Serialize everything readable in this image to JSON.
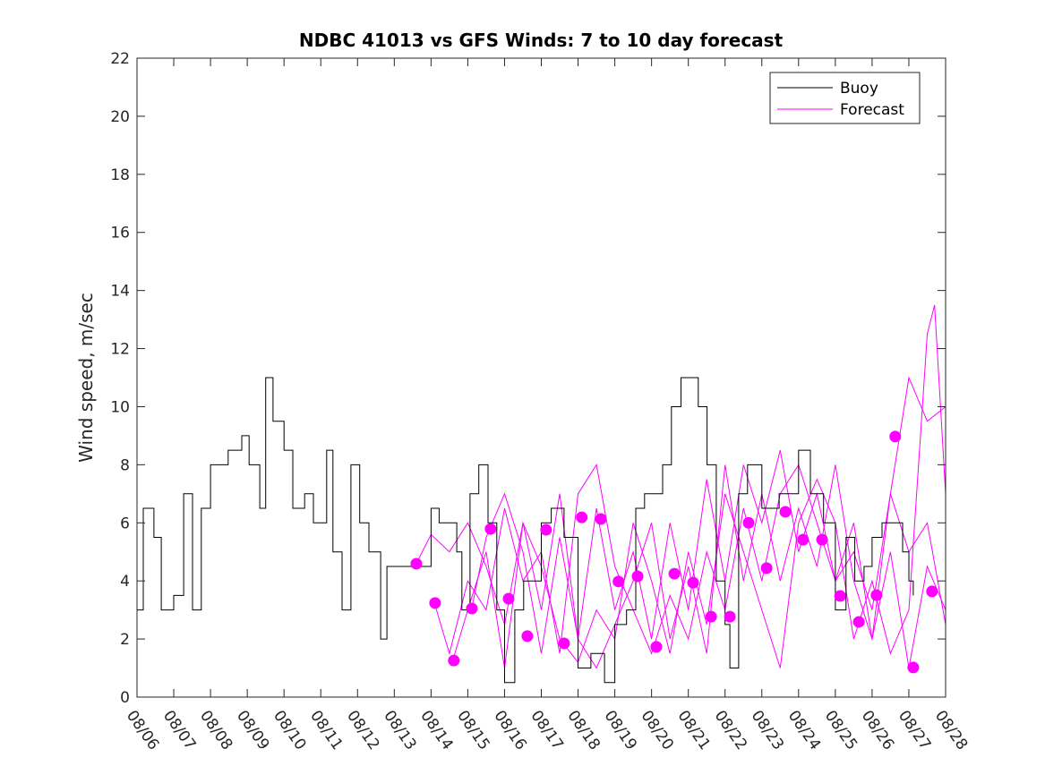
{
  "chart_data": {
    "type": "line",
    "title": "NDBC 41013 vs GFS Winds: 7 to 10 day forecast",
    "xlabel": "",
    "ylabel": "Wind speed, m/sec",
    "xlim": [
      0,
      22
    ],
    "ylim": [
      0,
      22
    ],
    "x_units": "days since 08/06",
    "x_tick_labels": [
      "08/06",
      "08/07",
      "08/08",
      "08/09",
      "08/10",
      "08/11",
      "08/12",
      "08/13",
      "08/14",
      "08/15",
      "08/16",
      "08/17",
      "08/18",
      "08/19",
      "08/20",
      "08/21",
      "08/22",
      "08/23",
      "08/24",
      "08/25",
      "08/26",
      "08/27",
      "08/28"
    ],
    "y_ticks": [
      0,
      2,
      4,
      6,
      8,
      10,
      12,
      14,
      16,
      18,
      20,
      22
    ],
    "legend": {
      "placement": "top-right",
      "entries": [
        "Buoy",
        "Forecast"
      ]
    },
    "colors": {
      "buoy": "#000000",
      "forecast": "#ff00ff"
    },
    "buoy": [
      [
        0,
        3
      ],
      [
        0.17,
        6.5
      ],
      [
        0.46,
        5.5
      ],
      [
        0.66,
        3
      ],
      [
        1,
        3.5
      ],
      [
        1.27,
        7
      ],
      [
        1.51,
        3
      ],
      [
        1.75,
        6.5
      ],
      [
        2,
        8
      ],
      [
        2.48,
        8.5
      ],
      [
        2.85,
        9
      ],
      [
        3.05,
        8
      ],
      [
        3.34,
        6.5
      ],
      [
        3.5,
        11
      ],
      [
        3.7,
        9.5
      ],
      [
        4,
        8.5
      ],
      [
        4.24,
        6.5
      ],
      [
        4.56,
        7
      ],
      [
        4.8,
        6
      ],
      [
        5.16,
        8.5
      ],
      [
        5.33,
        5
      ],
      [
        5.58,
        3
      ],
      [
        5.82,
        8
      ],
      [
        6.06,
        6
      ],
      [
        6.31,
        5
      ],
      [
        6.63,
        2
      ],
      [
        6.8,
        4.5
      ],
      [
        7,
        4.5
      ],
      [
        7.48,
        4.5
      ],
      [
        7.72,
        4.5
      ],
      [
        8,
        6.5
      ],
      [
        8.22,
        6
      ],
      [
        8.45,
        6
      ],
      [
        8.7,
        5
      ],
      [
        8.84,
        3
      ],
      [
        9.06,
        7
      ],
      [
        9.3,
        8
      ],
      [
        9.55,
        6
      ],
      [
        9.79,
        3
      ],
      [
        10,
        0.5
      ],
      [
        10.28,
        3
      ],
      [
        10.52,
        4
      ],
      [
        11,
        6
      ],
      [
        11.27,
        6.5
      ],
      [
        11.62,
        5.5
      ],
      [
        12,
        1
      ],
      [
        12.35,
        1.5
      ],
      [
        12.72,
        0.5
      ],
      [
        13,
        2.5
      ],
      [
        13.32,
        3
      ],
      [
        13.57,
        6.5
      ],
      [
        13.81,
        7
      ],
      [
        14,
        7
      ],
      [
        14.3,
        8
      ],
      [
        14.54,
        10
      ],
      [
        14.8,
        11
      ],
      [
        15,
        11
      ],
      [
        15.27,
        10
      ],
      [
        15.51,
        8
      ],
      [
        15.76,
        4
      ],
      [
        16,
        2.5
      ],
      [
        16.13,
        1
      ],
      [
        16.37,
        7
      ],
      [
        16.61,
        8
      ],
      [
        17,
        6.5
      ],
      [
        17.47,
        7
      ],
      [
        17.71,
        7
      ],
      [
        18,
        8.5
      ],
      [
        18.32,
        7
      ],
      [
        18.68,
        6
      ],
      [
        19,
        3
      ],
      [
        19.29,
        5.5
      ],
      [
        19.53,
        4
      ],
      [
        19.78,
        4.5
      ],
      [
        20,
        5.5
      ],
      [
        20.27,
        6
      ],
      [
        20.63,
        6
      ],
      [
        20.83,
        5
      ],
      [
        21,
        4
      ],
      [
        21.12,
        3.5
      ]
    ],
    "forecast_series": [
      [
        [
          7.6,
          4.6
        ],
        [
          8,
          5.6
        ],
        [
          8.5,
          5
        ],
        [
          9,
          6
        ],
        [
          9.5,
          4.5
        ],
        [
          10,
          2.5
        ],
        [
          10.5,
          6
        ],
        [
          11,
          3
        ],
        [
          11.5,
          7
        ],
        [
          12,
          2
        ],
        [
          12.5,
          6.5
        ],
        [
          13,
          3
        ],
        [
          13.5,
          5
        ],
        [
          14,
          2
        ],
        [
          14.5,
          6
        ],
        [
          15,
          3
        ],
        [
          15.5,
          7.5
        ],
        [
          16,
          4
        ],
        [
          16.5,
          8
        ],
        [
          17,
          6
        ],
        [
          17.5,
          8.5
        ],
        [
          18,
          5
        ],
        [
          18.5,
          7
        ],
        [
          19,
          4
        ],
        [
          19.5,
          5
        ],
        [
          20,
          3
        ],
        [
          20.5,
          7
        ],
        [
          21,
          5
        ],
        [
          21.5,
          6
        ],
        [
          22,
          2.5
        ]
      ],
      [
        [
          8.1,
          3.2
        ],
        [
          8.5,
          1.5
        ],
        [
          9,
          4
        ],
        [
          9.5,
          3
        ],
        [
          10,
          6.5
        ],
        [
          10.5,
          4
        ],
        [
          11,
          5
        ],
        [
          11.5,
          1.5
        ],
        [
          12,
          7
        ],
        [
          12.5,
          8
        ],
        [
          13,
          4.5
        ],
        [
          13.5,
          3
        ],
        [
          14,
          1.5
        ],
        [
          14.5,
          3.5
        ],
        [
          15,
          2
        ],
        [
          15.5,
          5
        ],
        [
          16,
          3
        ],
        [
          16.5,
          6.5
        ],
        [
          17,
          4
        ],
        [
          17.5,
          7
        ],
        [
          18,
          8
        ],
        [
          18.5,
          6
        ],
        [
          19,
          4
        ],
        [
          19.5,
          6
        ],
        [
          20,
          2
        ],
        [
          20.5,
          7
        ],
        [
          21,
          11
        ],
        [
          21.5,
          9.5
        ],
        [
          22,
          10
        ]
      ],
      [
        [
          8.6,
          1.3
        ],
        [
          9,
          3
        ],
        [
          9.5,
          5
        ],
        [
          10,
          1
        ],
        [
          10.5,
          6
        ],
        [
          11,
          4.5
        ],
        [
          11.5,
          2
        ],
        [
          12,
          1.2
        ],
        [
          12.5,
          3
        ],
        [
          13,
          2
        ],
        [
          13.5,
          6
        ],
        [
          14,
          4
        ],
        [
          14.5,
          1.5
        ],
        [
          15,
          5
        ],
        [
          15.5,
          2.5
        ],
        [
          16,
          7
        ],
        [
          16.5,
          5
        ],
        [
          17,
          3
        ],
        [
          17.5,
          1
        ],
        [
          18,
          6
        ],
        [
          18.5,
          7.5
        ],
        [
          19,
          6
        ],
        [
          19.5,
          2
        ],
        [
          20,
          4
        ],
        [
          20.5,
          1.5
        ],
        [
          21,
          3
        ],
        [
          21.5,
          12.5
        ],
        [
          21.7,
          13.5
        ],
        [
          22,
          7
        ]
      ],
      [
        [
          9.1,
          3
        ],
        [
          9.5,
          5.5
        ],
        [
          10,
          7
        ],
        [
          10.5,
          5
        ],
        [
          11,
          1.5
        ],
        [
          11.5,
          5.5
        ],
        [
          12,
          2
        ],
        [
          12.5,
          1
        ],
        [
          13,
          2.5
        ],
        [
          13.5,
          4
        ],
        [
          14,
          6
        ],
        [
          14.5,
          2
        ],
        [
          15,
          4.5
        ],
        [
          15.5,
          1.5
        ],
        [
          16,
          8
        ],
        [
          16.5,
          4
        ],
        [
          17,
          7
        ],
        [
          17.5,
          4
        ],
        [
          18,
          6.5
        ],
        [
          18.5,
          4.5
        ],
        [
          19,
          8
        ],
        [
          19.5,
          4
        ],
        [
          20,
          2
        ],
        [
          20.5,
          5
        ],
        [
          21,
          1
        ],
        [
          21.5,
          4.5
        ],
        [
          22,
          3
        ]
      ]
    ],
    "forecast_markers": [
      [
        7.6,
        4.59
      ],
      [
        8.11,
        3.24
      ],
      [
        8.62,
        1.26
      ],
      [
        9.11,
        3.05
      ],
      [
        9.62,
        5.79
      ],
      [
        10.11,
        3.39
      ],
      [
        10.62,
        2.1
      ],
      [
        11.13,
        5.76
      ],
      [
        11.62,
        1.85
      ],
      [
        12.1,
        6.19
      ],
      [
        12.62,
        6.13
      ],
      [
        13.1,
        3.98
      ],
      [
        13.62,
        4.16
      ],
      [
        14.13,
        1.73
      ],
      [
        14.62,
        4.25
      ],
      [
        15.13,
        3.94
      ],
      [
        15.62,
        2.77
      ],
      [
        16.13,
        2.77
      ],
      [
        16.64,
        6.0
      ],
      [
        17.13,
        4.44
      ],
      [
        17.64,
        6.38
      ],
      [
        18.12,
        5.42
      ],
      [
        18.64,
        5.42
      ],
      [
        19.13,
        3.48
      ],
      [
        19.64,
        2.59
      ],
      [
        20.12,
        3.51
      ],
      [
        20.63,
        8.97
      ],
      [
        21.12,
        1.02
      ],
      [
        21.63,
        3.64
      ]
    ]
  }
}
